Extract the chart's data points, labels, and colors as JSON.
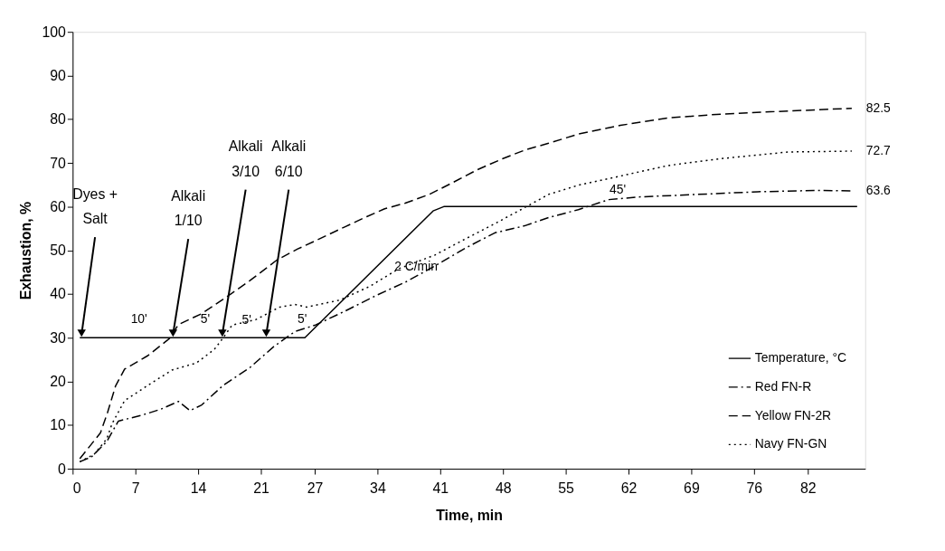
{
  "chart_data": {
    "type": "line",
    "xlabel": "Time, min",
    "ylabel": "Exhaustion, %",
    "xlim": [
      0,
      88.4
    ],
    "ylim": [
      0,
      100
    ],
    "xticks": [
      0,
      7,
      14,
      21,
      27,
      34,
      41,
      48,
      55,
      62,
      69,
      76,
      82
    ],
    "yticks": [
      0,
      10,
      20,
      30,
      40,
      50,
      60,
      70,
      80,
      90,
      100
    ],
    "grid": false,
    "legend": "bottom right",
    "marker": "none",
    "series": [
      {
        "name": "Temperature, °C",
        "color": "#000000",
        "line_style": "solid",
        "x": [
          0.8,
          25.9,
          40.2,
          41.4,
          87.5
        ],
        "values": [
          30,
          30,
          59,
          60,
          60
        ]
      },
      {
        "name": "Red FN-R",
        "color": "#000000",
        "line_style": "dashdot",
        "x": [
          0.8,
          2.1,
          3.8,
          5.1,
          7.8,
          9.8,
          11.8,
          13.1,
          14.4,
          16.8,
          19.8,
          22.4,
          24.8,
          27.1,
          30.4,
          33.8,
          37.1,
          40.4,
          43.8,
          47.1,
          50.4,
          53.1,
          56.4,
          59.8,
          63.1,
          69.8,
          76.4,
          83.1,
          86.9
        ],
        "values": [
          1.6,
          2.7,
          6.2,
          10.9,
          12.3,
          13.6,
          15.4,
          13.3,
          14.6,
          19.1,
          23.2,
          27.9,
          31.4,
          32.9,
          36.1,
          39.6,
          42.7,
          46.4,
          50.5,
          54,
          55.6,
          57.5,
          59.3,
          61.6,
          62.2,
          62.8,
          63.4,
          63.7,
          63.6
        ],
        "value_labels": [
          null,
          null,
          null,
          null,
          null,
          null,
          null,
          null,
          null,
          null,
          null,
          null,
          null,
          null,
          null,
          null,
          null,
          null,
          null,
          null,
          null,
          null,
          null,
          null,
          null,
          null,
          null,
          null,
          "63.6"
        ]
      },
      {
        "name": "Yellow FN-2R",
        "color": "#000000",
        "line_style": "dashed",
        "x": [
          0.8,
          3.1,
          3.9,
          4.8,
          5.8,
          8.4,
          10.8,
          11.8,
          14.4,
          17.1,
          19.8,
          22.8,
          25.1,
          27.1,
          30.4,
          32.8,
          34.8,
          37.1,
          39.8,
          42.4,
          45.1,
          48,
          50.5,
          53.1,
          56.4,
          61.1,
          66.4,
          71.8,
          77.8,
          86.9
        ],
        "values": [
          2.3,
          8.2,
          12.9,
          19,
          22.8,
          25.9,
          29.8,
          33,
          35.5,
          39.2,
          43.1,
          47.8,
          50.3,
          52.2,
          55.4,
          57.7,
          59.5,
          60.8,
          62.8,
          65.5,
          68.4,
          71,
          73,
          74.5,
          76.6,
          78.6,
          80.3,
          81.1,
          81.7,
          82.5
        ],
        "value_labels": [
          null,
          null,
          null,
          null,
          null,
          null,
          null,
          null,
          null,
          null,
          null,
          null,
          null,
          null,
          null,
          null,
          null,
          null,
          null,
          null,
          null,
          null,
          null,
          null,
          null,
          null,
          null,
          null,
          null,
          "82.5"
        ]
      },
      {
        "name": "Navy FN-GN",
        "color": "#000000",
        "line_style": "dotted",
        "x": [
          0.8,
          2.4,
          3.8,
          4.4,
          5.8,
          8.4,
          11.1,
          13.8,
          15.8,
          16.8,
          17.8,
          20.4,
          23.1,
          24.8,
          26.1,
          29.8,
          33.1,
          36.4,
          40.4,
          43.8,
          47.1,
          50.8,
          53.1,
          56.4,
          61.1,
          66.4,
          72.4,
          79.8,
          86.9
        ],
        "values": [
          1.6,
          3.3,
          6.8,
          10.3,
          15.6,
          19.1,
          22.6,
          24.2,
          27.3,
          30,
          32.9,
          34.1,
          37,
          37.6,
          37,
          38.6,
          41.7,
          45.8,
          48.9,
          52.6,
          56.1,
          60.2,
          62.8,
          64.9,
          67,
          69.4,
          71,
          72.5,
          72.7
        ],
        "value_labels": [
          null,
          null,
          null,
          null,
          null,
          null,
          null,
          null,
          null,
          null,
          null,
          null,
          null,
          null,
          null,
          null,
          null,
          null,
          null,
          null,
          null,
          null,
          null,
          null,
          null,
          null,
          null,
          null,
          "72.7"
        ]
      }
    ],
    "annotations": [
      {
        "text": "Dyes +\nSalt",
        "x": 1.0,
        "y": 30
      },
      {
        "text": "Alkali\n1/10",
        "x": 11.2,
        "y": 30
      },
      {
        "text": "Alkali\n3/10",
        "x": 16.7,
        "y": 30
      },
      {
        "text": "Alkali\n6/10",
        "x": 21.6,
        "y": 30
      },
      "10'",
      "5'",
      {
        "text": "5'",
        "x": 19.4,
        "y": 34
      },
      "5'",
      {
        "text": "2 C/min",
        "x": 38.3,
        "y": 46.2
      },
      "45'"
    ]
  }
}
